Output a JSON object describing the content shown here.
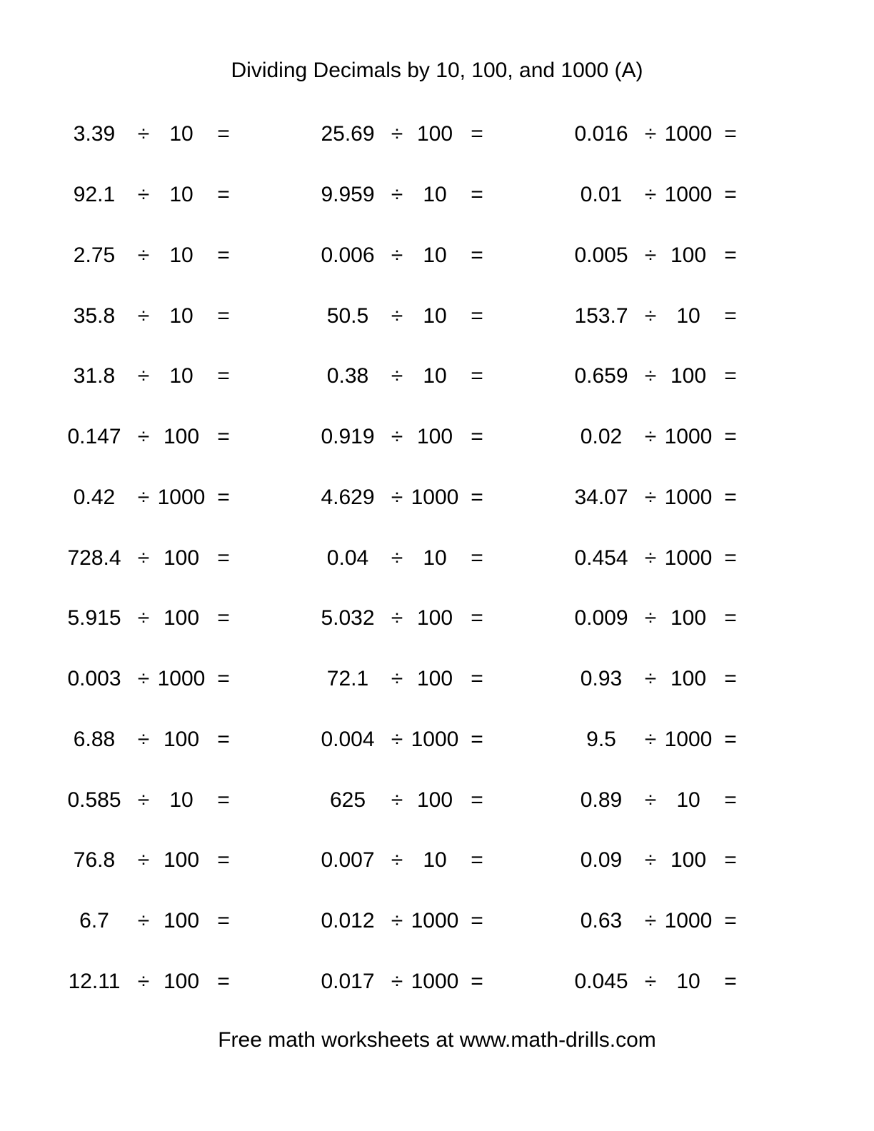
{
  "title": "Dividing Decimals by 10, 100, and 1000 (A)",
  "footer": "Free math worksheets at www.math-drills.com",
  "symbols": {
    "divide": "÷",
    "equals": "="
  },
  "colors": {
    "text": "#000000",
    "background": "#ffffff"
  },
  "problems": [
    [
      {
        "dividend": "3.39",
        "divisor": "10"
      },
      {
        "dividend": "25.69",
        "divisor": "100"
      },
      {
        "dividend": "0.016",
        "divisor": "1000"
      }
    ],
    [
      {
        "dividend": "92.1",
        "divisor": "10"
      },
      {
        "dividend": "9.959",
        "divisor": "10"
      },
      {
        "dividend": "0.01",
        "divisor": "1000"
      }
    ],
    [
      {
        "dividend": "2.75",
        "divisor": "10"
      },
      {
        "dividend": "0.006",
        "divisor": "10"
      },
      {
        "dividend": "0.005",
        "divisor": "100"
      }
    ],
    [
      {
        "dividend": "35.8",
        "divisor": "10"
      },
      {
        "dividend": "50.5",
        "divisor": "10"
      },
      {
        "dividend": "153.7",
        "divisor": "10"
      }
    ],
    [
      {
        "dividend": "31.8",
        "divisor": "10"
      },
      {
        "dividend": "0.38",
        "divisor": "10"
      },
      {
        "dividend": "0.659",
        "divisor": "100"
      }
    ],
    [
      {
        "dividend": "0.147",
        "divisor": "100"
      },
      {
        "dividend": "0.919",
        "divisor": "100"
      },
      {
        "dividend": "0.02",
        "divisor": "1000"
      }
    ],
    [
      {
        "dividend": "0.42",
        "divisor": "1000"
      },
      {
        "dividend": "4.629",
        "divisor": "1000"
      },
      {
        "dividend": "34.07",
        "divisor": "1000"
      }
    ],
    [
      {
        "dividend": "728.4",
        "divisor": "100"
      },
      {
        "dividend": "0.04",
        "divisor": "10"
      },
      {
        "dividend": "0.454",
        "divisor": "1000"
      }
    ],
    [
      {
        "dividend": "5.915",
        "divisor": "100"
      },
      {
        "dividend": "5.032",
        "divisor": "100"
      },
      {
        "dividend": "0.009",
        "divisor": "100"
      }
    ],
    [
      {
        "dividend": "0.003",
        "divisor": "1000"
      },
      {
        "dividend": "72.1",
        "divisor": "100"
      },
      {
        "dividend": "0.93",
        "divisor": "100"
      }
    ],
    [
      {
        "dividend": "6.88",
        "divisor": "100"
      },
      {
        "dividend": "0.004",
        "divisor": "1000"
      },
      {
        "dividend": "9.5",
        "divisor": "1000"
      }
    ],
    [
      {
        "dividend": "0.585",
        "divisor": "10"
      },
      {
        "dividend": "625",
        "divisor": "100"
      },
      {
        "dividend": "0.89",
        "divisor": "10"
      }
    ],
    [
      {
        "dividend": "76.8",
        "divisor": "100"
      },
      {
        "dividend": "0.007",
        "divisor": "10"
      },
      {
        "dividend": "0.09",
        "divisor": "100"
      }
    ],
    [
      {
        "dividend": "6.7",
        "divisor": "100"
      },
      {
        "dividend": "0.012",
        "divisor": "1000"
      },
      {
        "dividend": "0.63",
        "divisor": "1000"
      }
    ],
    [
      {
        "dividend": "12.11",
        "divisor": "100"
      },
      {
        "dividend": "0.017",
        "divisor": "1000"
      },
      {
        "dividend": "0.045",
        "divisor": "10"
      }
    ]
  ]
}
